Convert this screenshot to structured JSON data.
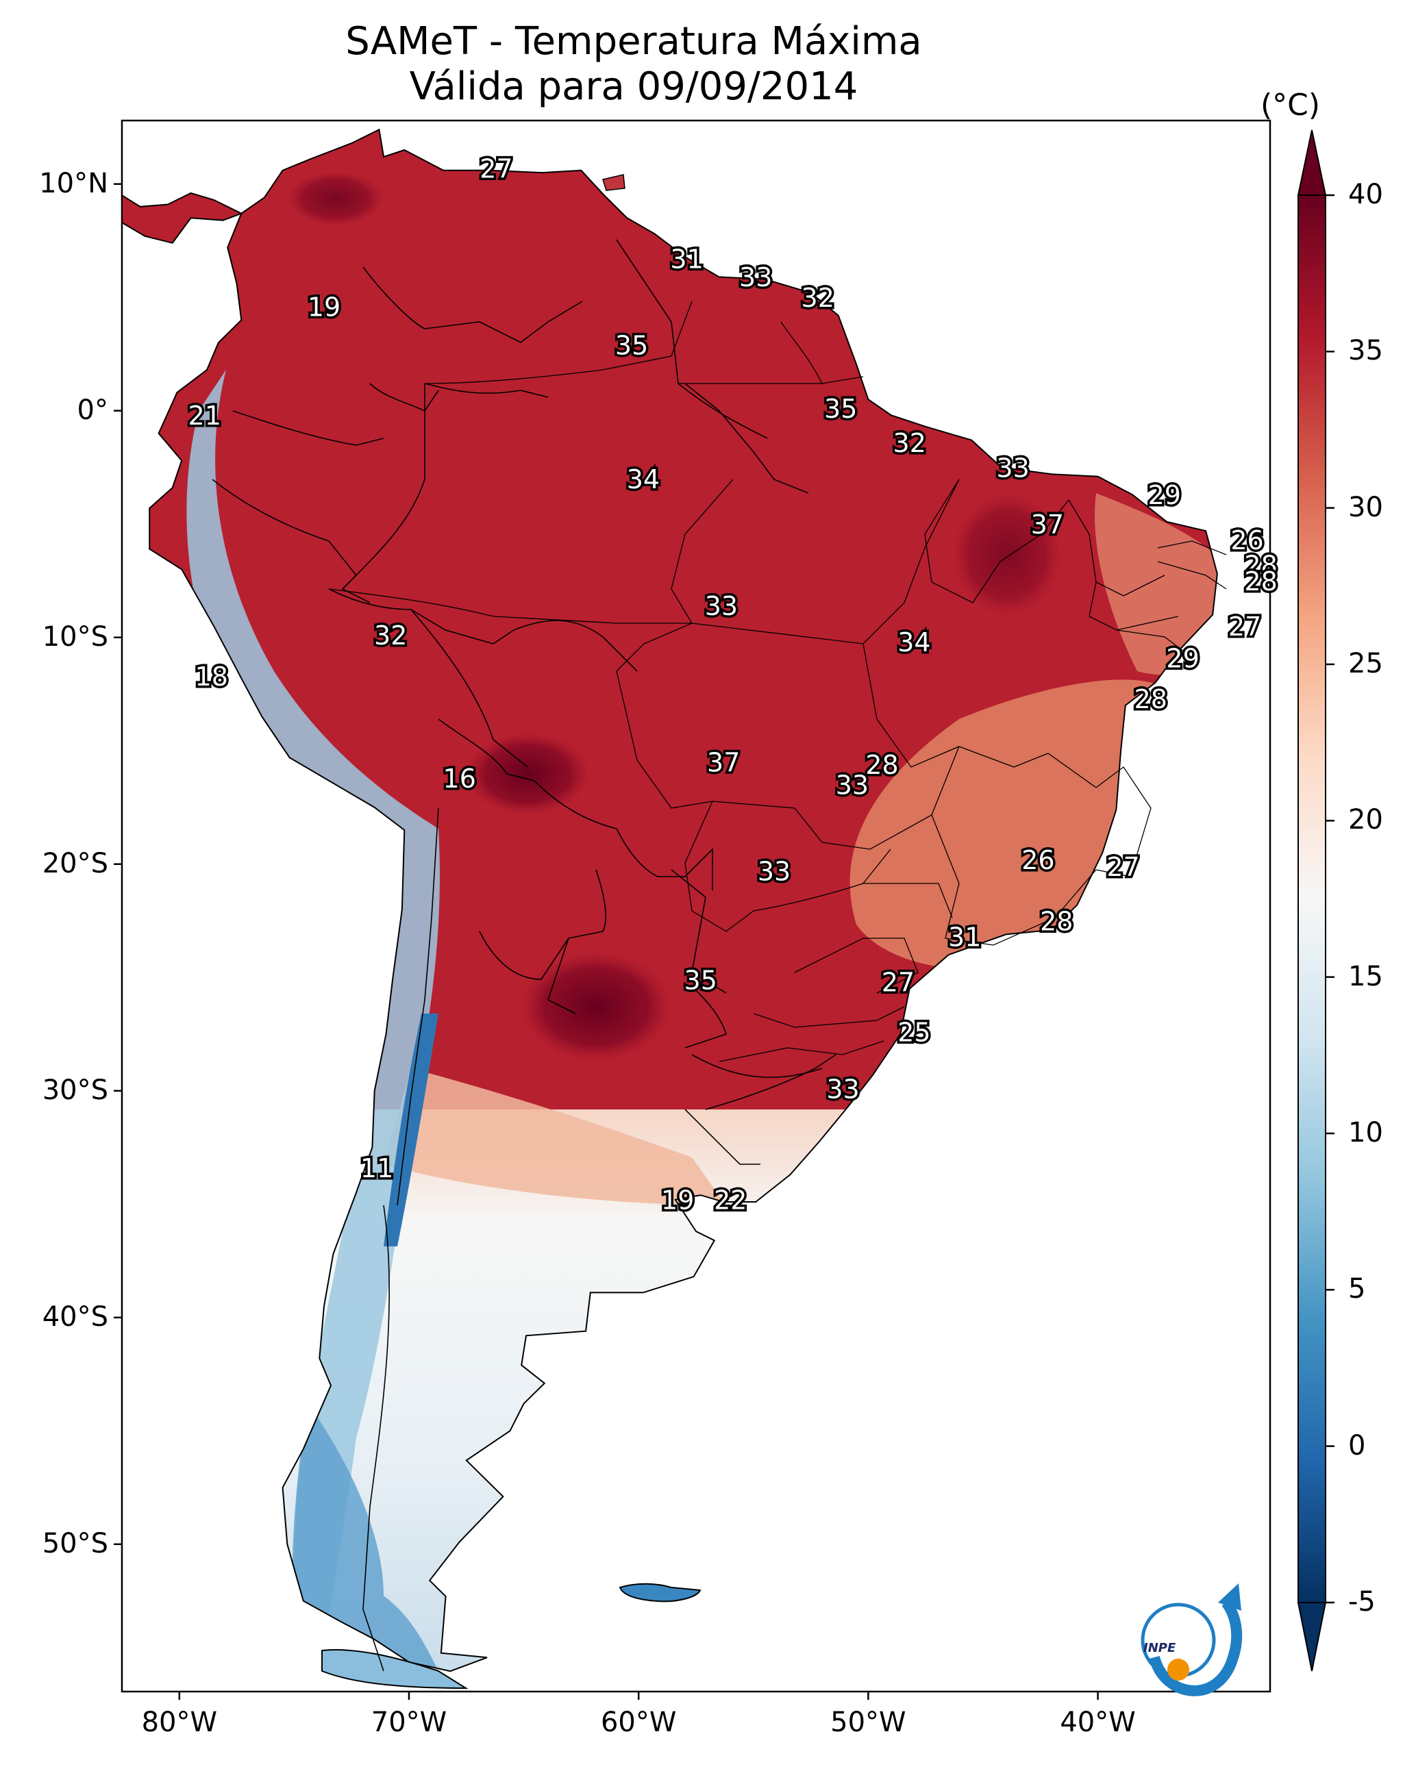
{
  "title": {
    "line1": "SAMeT - Temperatura Máxima",
    "line2": "Válida para 09/09/2014"
  },
  "map": {
    "region": "South America",
    "lon_range": [
      -82.5,
      -32.5
    ],
    "lat_range": [
      -56.5,
      12.8
    ],
    "x_ticks": [
      {
        "lon": -80,
        "label": "80°W"
      },
      {
        "lon": -70,
        "label": "70°W"
      },
      {
        "lon": -60,
        "label": "60°W"
      },
      {
        "lon": -50,
        "label": "50°W"
      },
      {
        "lon": -40,
        "label": "40°W"
      }
    ],
    "y_ticks": [
      {
        "lat": 10,
        "label": "10°N"
      },
      {
        "lat": 0,
        "label": "0°"
      },
      {
        "lat": -10,
        "label": "10°S"
      },
      {
        "lat": -20,
        "label": "20°S"
      },
      {
        "lat": -30,
        "label": "30°S"
      },
      {
        "lat": -40,
        "label": "40°S"
      },
      {
        "lat": -50,
        "label": "50°S"
      }
    ],
    "temperature_labels": [
      {
        "lon": -66.2,
        "lat": 10.6,
        "value": "27"
      },
      {
        "lon": -73.7,
        "lat": 4.5,
        "value": "19"
      },
      {
        "lon": -57.9,
        "lat": 6.6,
        "value": "31"
      },
      {
        "lon": -54.9,
        "lat": 5.8,
        "value": "33"
      },
      {
        "lon": -52.2,
        "lat": 4.9,
        "value": "32"
      },
      {
        "lon": -60.3,
        "lat": 2.8,
        "value": "35"
      },
      {
        "lon": -78.9,
        "lat": -0.3,
        "value": "21"
      },
      {
        "lon": -51.2,
        "lat": 0.0,
        "value": "35"
      },
      {
        "lon": -48.2,
        "lat": -1.5,
        "value": "32"
      },
      {
        "lon": -59.8,
        "lat": -3.1,
        "value": "34"
      },
      {
        "lon": -43.7,
        "lat": -2.6,
        "value": "33"
      },
      {
        "lon": -37.1,
        "lat": -3.8,
        "value": "29"
      },
      {
        "lon": -42.2,
        "lat": -5.1,
        "value": "37"
      },
      {
        "lon": -33.5,
        "lat": -5.8,
        "value": "26"
      },
      {
        "lon": -32.9,
        "lat": -6.9,
        "value": "28"
      },
      {
        "lon": -32.9,
        "lat": -7.6,
        "value": "28"
      },
      {
        "lon": -33.6,
        "lat": -9.6,
        "value": "27"
      },
      {
        "lon": -36.3,
        "lat": -11.0,
        "value": "29"
      },
      {
        "lon": -37.7,
        "lat": -12.8,
        "value": "28"
      },
      {
        "lon": -56.4,
        "lat": -8.7,
        "value": "33"
      },
      {
        "lon": -70.8,
        "lat": -10.0,
        "value": "32"
      },
      {
        "lon": -48.0,
        "lat": -10.3,
        "value": "34"
      },
      {
        "lon": -78.6,
        "lat": -11.8,
        "value": "18"
      },
      {
        "lon": -56.3,
        "lat": -15.6,
        "value": "37"
      },
      {
        "lon": -49.4,
        "lat": -15.7,
        "value": "28"
      },
      {
        "lon": -50.7,
        "lat": -16.6,
        "value": "33"
      },
      {
        "lon": -67.8,
        "lat": -16.3,
        "value": "16"
      },
      {
        "lon": -42.6,
        "lat": -19.9,
        "value": "26"
      },
      {
        "lon": -38.9,
        "lat": -20.2,
        "value": "27"
      },
      {
        "lon": -54.1,
        "lat": -20.4,
        "value": "33"
      },
      {
        "lon": -41.8,
        "lat": -22.6,
        "value": "28"
      },
      {
        "lon": -45.8,
        "lat": -23.3,
        "value": "31"
      },
      {
        "lon": -57.3,
        "lat": -25.2,
        "value": "35"
      },
      {
        "lon": -48.7,
        "lat": -25.3,
        "value": "27"
      },
      {
        "lon": -48.0,
        "lat": -27.5,
        "value": "25"
      },
      {
        "lon": -51.1,
        "lat": -30.0,
        "value": "33"
      },
      {
        "lon": -71.4,
        "lat": -33.5,
        "value": "11"
      },
      {
        "lon": -58.3,
        "lat": -34.9,
        "value": "19"
      },
      {
        "lon": -56.0,
        "lat": -34.9,
        "value": "22"
      }
    ]
  },
  "colorbar": {
    "unit": "(°C)",
    "range": [
      -5,
      40
    ],
    "extend": "both",
    "colors": [
      "#053061",
      "#2166ac",
      "#4393c3",
      "#92c5de",
      "#d1e5f0",
      "#f7f7f7",
      "#fddbc7",
      "#f4a582",
      "#d6604d",
      "#b2182b",
      "#67001f"
    ],
    "ticks": [
      "40",
      "35",
      "30",
      "25",
      "20",
      "15",
      "10",
      "5",
      "0",
      "-5"
    ]
  },
  "logo": {
    "text": "INPE",
    "ring_color": "#1f7fc4",
    "dot_color": "#f39200"
  }
}
